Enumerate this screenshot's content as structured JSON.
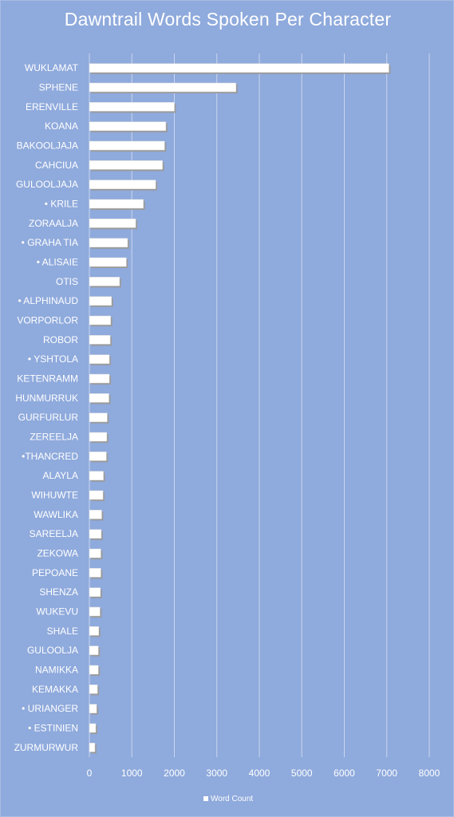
{
  "chart_data": {
    "type": "bar",
    "orientation": "horizontal",
    "title": "Dawntrail Words Spoken Per Character",
    "categories": [
      "WUKLAMAT",
      "SPHENE",
      "ERENVILLE",
      "KOANA",
      "BAKOOLJAJA",
      "CAHCIUA",
      "GULOOLJAJA",
      "• KRILE",
      "ZORAALJA",
      "• GRAHA TIA",
      "• ALISAIE",
      "OTIS",
      "• ALPHINAUD",
      "VORPORLOR",
      "ROBOR",
      "• YSHTOLA",
      "KETENRAMM",
      "HUNMURRUK",
      "GURFURLUR",
      "ZEREELJA",
      "•THANCRED",
      "ALAYLA",
      "WIHUWTE",
      "WAWLIKA",
      "SAREELJA",
      "ZEKOWA",
      "PEPOANE",
      "SHENZA",
      "WUKEVU",
      "SHALE",
      "GULOOLJA",
      "NAMIKKA",
      "KEMAKKA",
      "• URIANGER",
      "• ESTINIEN",
      "ZURMURWUR"
    ],
    "series": [
      {
        "name": "Word Count",
        "values": [
          7050,
          3450,
          2000,
          1800,
          1770,
          1720,
          1560,
          1270,
          1090,
          900,
          870,
          710,
          520,
          500,
          490,
          470,
          470,
          460,
          420,
          410,
          400,
          330,
          320,
          290,
          280,
          270,
          270,
          260,
          250,
          220,
          210,
          210,
          190,
          170,
          150,
          130
        ]
      }
    ],
    "xlim": [
      0,
      8000
    ],
    "xticks": [
      "0",
      "1000",
      "2000",
      "3000",
      "4000",
      "5000",
      "6000",
      "7000",
      "8000"
    ],
    "grid": true,
    "legend_position": "bottom"
  },
  "colors": {
    "background": "#8faadc",
    "bar_fill": "#ffffff",
    "bar_shadow": "#9a9a9a",
    "gridline": "#c9d6f0",
    "text": "#ffffff"
  }
}
